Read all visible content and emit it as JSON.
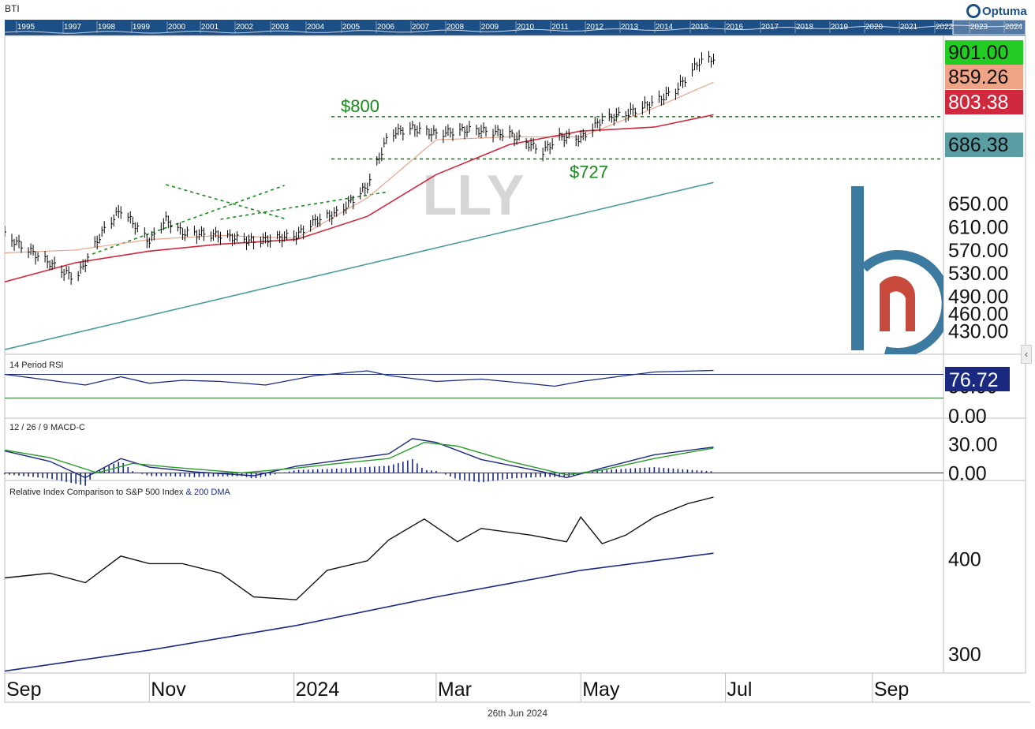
{
  "header": {
    "symbol": "BTI",
    "brand": "Optuma",
    "timeline_years": [
      "1995",
      "1997",
      "1998",
      "1999",
      "2000",
      "2001",
      "2002",
      "2003",
      "2004",
      "2005",
      "2006",
      "2007",
      "2008",
      "2009",
      "2010",
      "2011",
      "2012",
      "2013",
      "2014",
      "2015",
      "2016",
      "2017",
      "2018",
      "2019",
      "2020",
      "2021",
      "2022",
      "2023",
      "2024"
    ]
  },
  "footer": {
    "date": "26th Jun 2024"
  },
  "colors": {
    "price_bars": "#000000",
    "ma_short": "#e8a48a",
    "ma_mid": "#d0283c",
    "ma_long": "#4a9aa0",
    "trendlines": "#1a8a1a",
    "rsi": "#1b2a80",
    "macd": "#1b2a80",
    "signal": "#2a9a2a",
    "relative": "#111111",
    "relative_dma": "#1b2a80"
  },
  "chart_data": [
    {
      "type": "line",
      "title": "LLY",
      "xlim": [
        "2023-09-01",
        "2024-10-01"
      ],
      "x_tick_labels": [
        "Sep",
        "Nov",
        "2024",
        "Mar",
        "May",
        "Jul",
        "Sep"
      ],
      "y_tick_labels": [
        "650.00",
        "610.00",
        "570.00",
        "530.00",
        "490.00",
        "460.00",
        "430.00"
      ],
      "ylim": [
        390,
        940
      ],
      "series": [
        {
          "name": "LLY",
          "x": [
            "2023-09-01",
            "2023-09-15",
            "2023-10-01",
            "2023-10-12",
            "2023-10-20",
            "2023-11-01",
            "2023-11-08",
            "2023-11-15",
            "2023-12-01",
            "2023-12-15",
            "2024-01-02",
            "2024-01-10",
            "2024-01-20",
            "2024-02-01",
            "2024-02-10",
            "2024-02-20",
            "2024-03-01",
            "2024-03-15",
            "2024-04-01",
            "2024-04-15",
            "2024-04-22",
            "2024-05-01",
            "2024-05-10",
            "2024-05-20",
            "2024-06-01",
            "2024-06-10",
            "2024-06-20",
            "2024-06-26"
          ],
          "values": [
            595,
            560,
            520,
            600,
            640,
            585,
            622,
            600,
            595,
            585,
            595,
            620,
            635,
            680,
            770,
            780,
            770,
            778,
            770,
            740,
            765,
            762,
            795,
            805,
            825,
            845,
            895,
            901
          ]
        },
        {
          "name": "",
          "x": [
            "2023-09-01",
            "2023-10-01",
            "2023-11-01",
            "2023-12-01",
            "2024-01-02",
            "2024-02-01",
            "2024-03-01",
            "2024-04-01",
            "2024-05-01",
            "2024-06-01",
            "2024-06-26"
          ],
          "values": [
            565,
            570,
            588,
            595,
            590,
            660,
            760,
            765,
            765,
            815,
            859.26
          ]
        },
        {
          "name": "",
          "x": [
            "2023-09-01",
            "2023-10-01",
            "2023-11-01",
            "2023-12-01",
            "2024-01-02",
            "2024-02-01",
            "2024-03-01",
            "2024-04-01",
            "2024-05-01",
            "2024-06-01",
            "2024-06-26"
          ],
          "values": [
            515,
            548,
            568,
            580,
            588,
            628,
            700,
            752,
            775,
            782,
            803.38
          ]
        },
        {
          "name": "",
          "x": [
            "2023-09-01",
            "2024-06-26"
          ],
          "values": [
            398,
            686.38
          ]
        }
      ],
      "annotations": [
        {
          "text": "$800",
          "value": 800
        },
        {
          "text": "$727",
          "value": 727
        }
      ],
      "last_value_labels": [
        "901.00",
        "859.26",
        "803.38",
        "686.38"
      ]
    },
    {
      "type": "line",
      "title": "14 Period RSI",
      "y_tick_labels": [
        "50.00",
        "0.00"
      ],
      "ylim": [
        0,
        100
      ],
      "reference_lines": [
        70,
        30
      ],
      "series": [
        {
          "name": "14 Period RSI",
          "x": [
            "2023-09-01",
            "2023-09-20",
            "2023-10-05",
            "2023-10-20",
            "2023-11-01",
            "2023-11-15",
            "2023-12-01",
            "2023-12-20",
            "2024-01-10",
            "2024-02-01",
            "2024-02-10",
            "2024-03-01",
            "2024-03-20",
            "2024-04-10",
            "2024-04-20",
            "2024-05-01",
            "2024-05-20",
            "2024-06-01",
            "2024-06-26"
          ],
          "values": [
            70,
            60,
            52,
            66,
            55,
            60,
            58,
            52,
            68,
            76,
            68,
            58,
            62,
            54,
            50,
            58,
            68,
            74,
            76.72
          ]
        }
      ],
      "last_value_labels": [
        "76.72"
      ]
    },
    {
      "type": "line",
      "title": "12 / 26 / 9 MACD-C",
      "y_tick_labels": [
        "30.00",
        "0.00"
      ],
      "ylim": [
        -8,
        45
      ],
      "series": [
        {
          "name": "",
          "x": [
            "2023-09-01",
            "2023-09-20",
            "2023-10-05",
            "2023-10-20",
            "2023-11-01",
            "2023-11-20",
            "2023-12-15",
            "2024-01-02",
            "2024-01-20",
            "2024-02-10",
            "2024-02-20",
            "2024-03-01",
            "2024-03-20",
            "2024-04-15",
            "2024-04-25",
            "2024-05-10",
            "2024-06-01",
            "2024-06-26"
          ],
          "values": [
            23,
            12,
            -5,
            15,
            6,
            1,
            -3,
            7,
            13,
            20,
            36,
            32,
            14,
            1,
            -5,
            5,
            19,
            27
          ]
        },
        {
          "name": "",
          "x": [
            "2023-09-01",
            "2023-09-20",
            "2023-10-10",
            "2023-10-25",
            "2023-11-10",
            "2023-12-10",
            "2024-01-02",
            "2024-01-20",
            "2024-02-10",
            "2024-02-25",
            "2024-03-10",
            "2024-04-01",
            "2024-04-25",
            "2024-05-10",
            "2024-06-01",
            "2024-06-26"
          ],
          "values": [
            24,
            16,
            0,
            10,
            6,
            0,
            5,
            10,
            15,
            32,
            28,
            12,
            -2,
            3,
            15,
            26
          ]
        }
      ]
    },
    {
      "type": "line",
      "title": "Relative Index Comparison to S&P 500 Index",
      "title_suffix": "& 200 DMA",
      "y_tick_labels": [
        "400",
        "300"
      ],
      "ylim": [
        280,
        480
      ],
      "series": [
        {
          "name": "Relative Index Comparison to S&P 500 Index",
          "x": [
            "2023-09-01",
            "2023-09-20",
            "2023-10-05",
            "2023-10-20",
            "2023-11-01",
            "2023-11-15",
            "2023-12-01",
            "2023-12-15",
            "2024-01-02",
            "2024-01-15",
            "2024-02-01",
            "2024-02-10",
            "2024-02-25",
            "2024-03-10",
            "2024-03-20",
            "2024-04-10",
            "2024-04-25",
            "2024-05-01",
            "2024-05-10",
            "2024-05-20",
            "2024-06-01",
            "2024-06-15",
            "2024-06-26"
          ],
          "values": [
            380,
            385,
            375,
            403,
            395,
            395,
            385,
            360,
            357,
            388,
            398,
            420,
            442,
            418,
            432,
            425,
            418,
            444,
            416,
            425,
            444,
            458,
            465
          ]
        },
        {
          "name": "200 DMA",
          "x": [
            "2023-09-01",
            "2023-11-01",
            "2024-01-02",
            "2024-03-01",
            "2024-05-01",
            "2024-06-26"
          ],
          "values": [
            282,
            304,
            330,
            360,
            388,
            406
          ]
        }
      ]
    }
  ]
}
